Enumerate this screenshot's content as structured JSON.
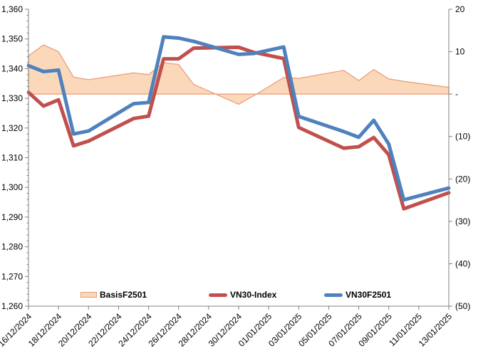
{
  "chart_data": {
    "type": "line",
    "title": "",
    "x": {
      "dates": [
        "16/12/2024",
        "17/12/2024",
        "18/12/2024",
        "19/12/2024",
        "20/12/2024",
        "23/12/2024",
        "24/12/2024",
        "25/12/2024",
        "26/12/2024",
        "27/12/2024",
        "30/12/2024",
        "31/12/2024",
        "02/01/2025",
        "03/01/2025",
        "06/01/2025",
        "07/01/2025",
        "08/01/2025",
        "09/01/2025",
        "10/01/2025",
        "13/01/2025"
      ],
      "day_offsets": [
        0,
        1,
        2,
        3,
        4,
        7,
        8,
        9,
        10,
        11,
        14,
        15,
        17,
        18,
        21,
        22,
        23,
        24,
        25,
        28
      ],
      "tick_labels": [
        "16/12/2024",
        "18/12/2024",
        "20/12/2024",
        "22/12/2024",
        "24/12/2024",
        "26/12/2024",
        "28/12/2024",
        "30/12/2024",
        "01/01/2025",
        "03/01/2025",
        "05/01/2025",
        "07/01/2025",
        "09/01/2025",
        "11/01/2025",
        "13/01/2025"
      ],
      "tick_day_offsets": [
        0,
        2,
        4,
        6,
        8,
        10,
        12,
        14,
        16,
        18,
        20,
        22,
        24,
        26,
        28
      ]
    },
    "series": [
      {
        "name": "BasisF2501",
        "type": "area",
        "axis": "right",
        "values": [
          9.0,
          11.6,
          10.0,
          4.0,
          3.4,
          5.0,
          4.6,
          7.4,
          7.0,
          2.3,
          -2.4,
          -0.4,
          3.9,
          3.7,
          5.6,
          3.2,
          5.8,
          3.6,
          3.0,
          1.6
        ]
      },
      {
        "name": "VN30-Index",
        "type": "line",
        "axis": "left",
        "values": [
          1332.0,
          1327.4,
          1329.5,
          1314.0,
          1315.6,
          1323.2,
          1324.0,
          1343.3,
          1343.3,
          1346.9,
          1347.2,
          1345.5,
          1343.4,
          1320.2,
          1313.2,
          1313.7,
          1316.8,
          1311.0,
          1292.8,
          1298.2
        ]
      },
      {
        "name": "VN30F2501",
        "type": "line",
        "axis": "left",
        "values": [
          1341.0,
          1339.0,
          1339.5,
          1318.0,
          1319.0,
          1328.2,
          1328.6,
          1350.7,
          1350.3,
          1349.2,
          1344.8,
          1345.1,
          1347.3,
          1323.9,
          1318.8,
          1316.9,
          1322.6,
          1314.6,
          1295.8,
          1299.8
        ]
      }
    ],
    "left_axis": {
      "min": 1260,
      "max": 1360,
      "step": 10,
      "minor_step": 2,
      "tick_labels": [
        "1,360",
        "1,350",
        "1,340",
        "1,330",
        "1,320",
        "1,310",
        "1,300",
        "1,290",
        "1,280",
        "1,270",
        "1,260"
      ]
    },
    "right_axis": {
      "min": -50,
      "max": 20,
      "step": 10,
      "tick_labels": [
        "20",
        "10",
        "-",
        "(10)",
        "(20)",
        "(30)",
        "(40)",
        "(50)"
      ],
      "tick_values": [
        20,
        10,
        0,
        -10,
        -20,
        -30,
        -40,
        -50
      ]
    },
    "legend": {
      "position": "bottom-inside",
      "entries": [
        "BasisF2501",
        "VN30-Index",
        "VN30F2501"
      ]
    },
    "grid": "off"
  },
  "colors": {
    "basis_fill": "#FBD8B9",
    "basis_border": "#E89B78",
    "vn30_index": "#C0504D",
    "vn30f2501": "#4F81BD",
    "axis": "#808080",
    "text": "#000000"
  }
}
